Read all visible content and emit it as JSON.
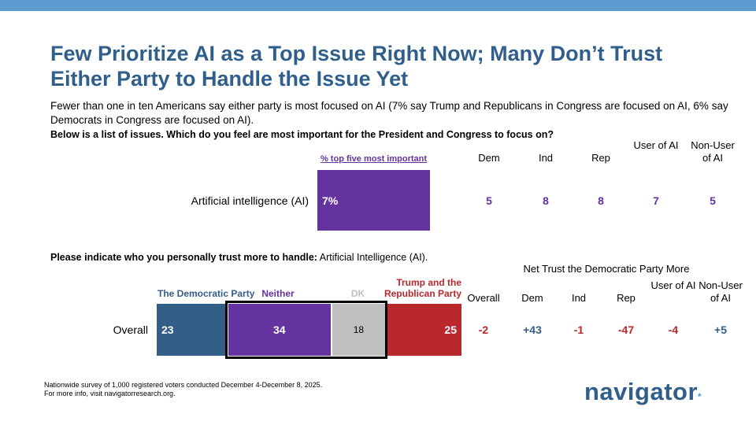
{
  "title": "Few Prioritize AI as a Top Issue Right Now; Many Don’t Trust Either Party to Handle the Issue Yet",
  "subtitle": "Fewer than one in ten Americans say either party is most focused on AI (7% say Trump and Republicans in Congress are focused on AI, 6% say Democrats in Congress are focused on AI).",
  "colors": {
    "title": "#2f5f8a",
    "purple": "#6533a0",
    "democratic": "#335e87",
    "republican": "#b8282d",
    "dk": "#bfbfbf",
    "topbar": "#5b9bd0"
  },
  "chart_data": [
    {
      "type": "bar",
      "question": "Below is a list of issues. Which do you feel are most important for the President and Congress to focus on?",
      "series_label": "% top five most important",
      "category": "Artificial intelligence (AI)",
      "value": 7,
      "value_label": "7%",
      "breakdown": {
        "headers": [
          "Dem",
          "Ind",
          "Rep",
          "User of AI",
          "Non-User of AI"
        ],
        "values": [
          "5",
          "8",
          "8",
          "7",
          "5"
        ]
      }
    },
    {
      "type": "bar",
      "stacked": true,
      "question_bold": "Please indicate who you personally trust more to handle:",
      "question_item": "Artificial Intelligence (AI).",
      "row_label": "Overall",
      "segments": [
        {
          "name": "The Democratic Party",
          "value": 23,
          "color": "#335e87"
        },
        {
          "name": "Neither",
          "value": 34,
          "color": "#6533a0"
        },
        {
          "name": "DK",
          "value": 18,
          "color": "#bfbfbf"
        },
        {
          "name": "Trump and the Republican Party",
          "value": 25,
          "color": "#b8282d"
        }
      ],
      "net": {
        "title": "Net Trust the Democratic Party More",
        "headers": [
          "Overall",
          "Dem",
          "Ind",
          "Rep",
          "User of AI",
          "Non-User of AI"
        ],
        "values": [
          "-2",
          "+43",
          "-1",
          "-47",
          "-4",
          "+5"
        ]
      }
    }
  ],
  "footer": {
    "line1": "Nationwide survey of 1,000 registered voters conducted December 4-December 8, 2025.",
    "line2": "For more info, visit navigatorresearch.org."
  },
  "logo": "navigator"
}
